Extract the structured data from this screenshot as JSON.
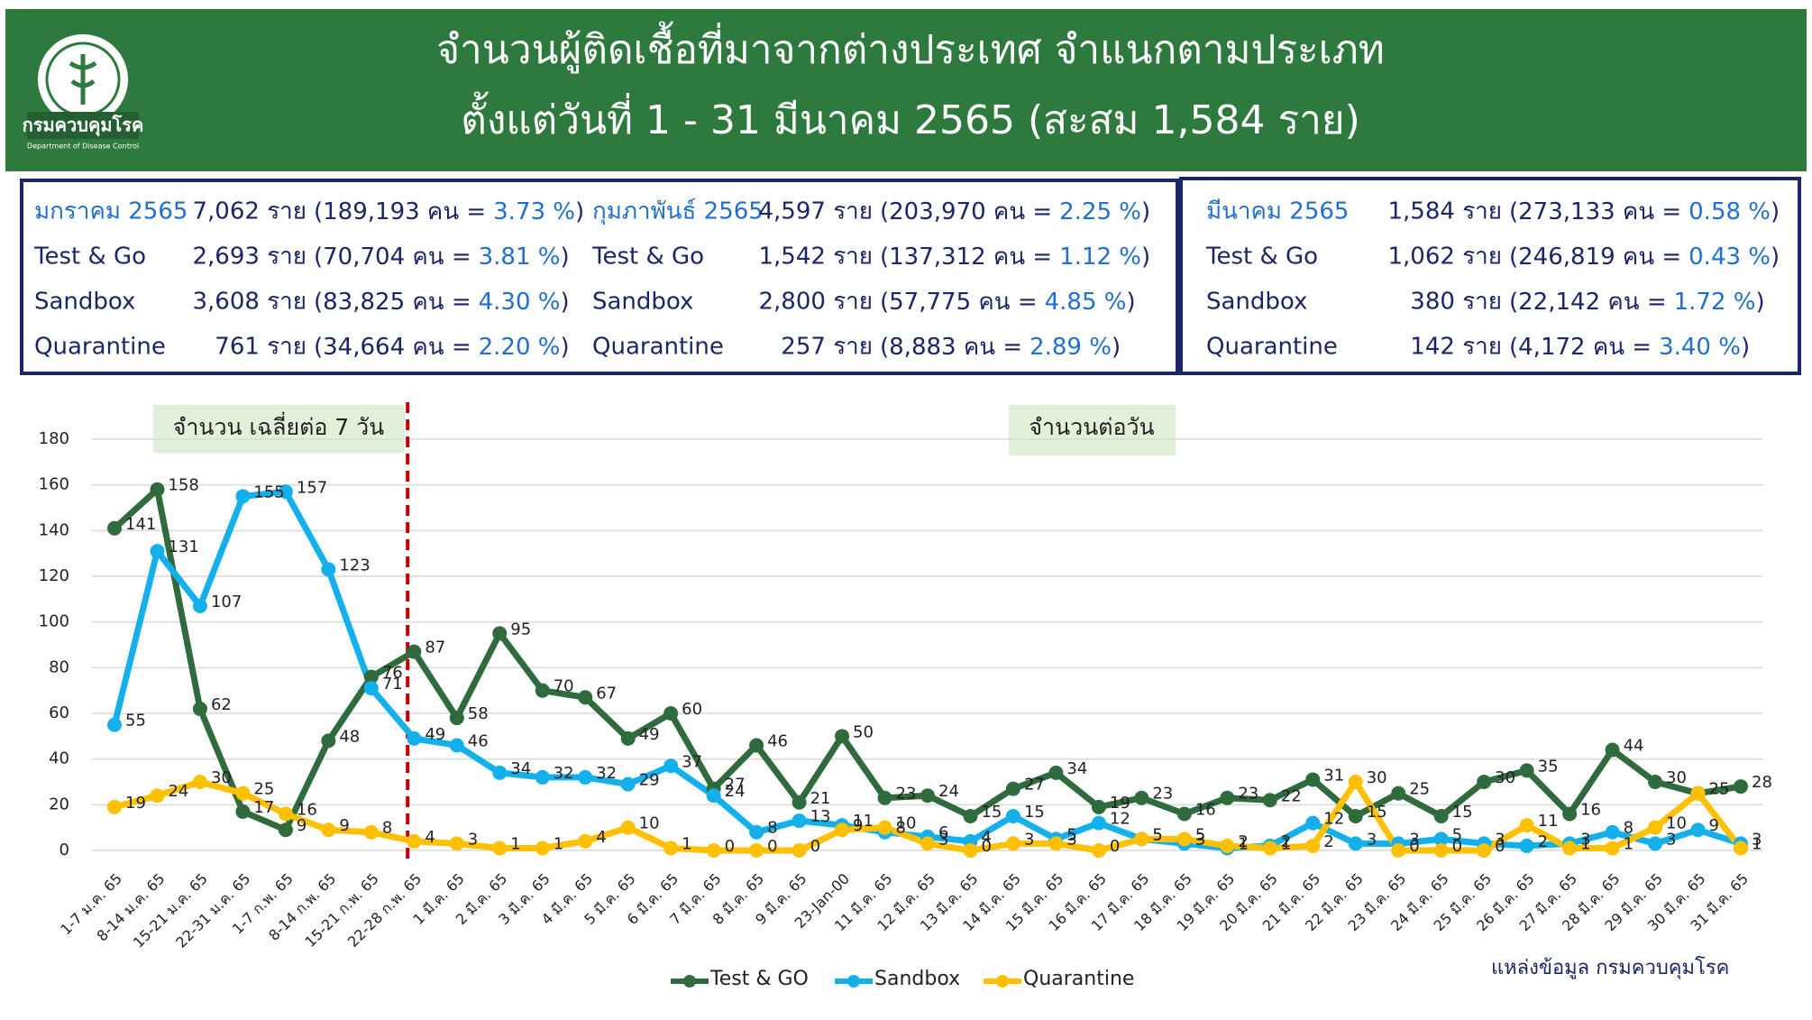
{
  "header": {
    "title_line1": "จำนวนผู้ติดเชื้อที่มาจากต่างประเทศ จำแนกตามประเภท",
    "title_line2": "ตั้งแต่วันที่ 1 - 31 มีนาคม 2565 (สะสม 1,584 ราย)",
    "logo_name": "กรมควบคุมโรค",
    "logo_subtitle": "Department of Disease Control"
  },
  "summary": [
    {
      "rows": [
        {
          "label": "มกราคม 2565",
          "count": "7,062 ราย",
          "people": "(189,193 คน =",
          "pct": "3.73 %",
          "close": ")"
        },
        {
          "label": "Test & Go",
          "count": "2,693 ราย",
          "people": "(70,704 คน =",
          "pct": "3.81 %",
          "close": ")"
        },
        {
          "label": "Sandbox",
          "count": "3,608 ราย",
          "people": "(83,825 คน =",
          "pct": "4.30 %",
          "close": ")"
        },
        {
          "label": "Quarantine",
          "count": "761 ราย",
          "people": "(34,664 คน =",
          "pct": "2.20 %",
          "close": ")"
        }
      ]
    },
    {
      "rows": [
        {
          "label": "กุมภาพันธ์ 2565",
          "count": "4,597 ราย",
          "people": "(203,970 คน =",
          "pct": "2.25 %",
          "close": ")"
        },
        {
          "label": "Test & Go",
          "count": "1,542 ราย",
          "people": "(137,312 คน =",
          "pct": "1.12 %",
          "close": ")"
        },
        {
          "label": "Sandbox",
          "count": "2,800 ราย",
          "people": "(57,775 คน =",
          "pct": "4.85 %",
          "close": ")"
        },
        {
          "label": "Quarantine",
          "count": "257 ราย",
          "people": "(8,883 คน =",
          "pct": "2.89 %",
          "close": ")"
        }
      ]
    },
    {
      "rows": [
        {
          "label": "มีนาคม 2565",
          "count": "1,584 ราย",
          "people": "(273,133 คน =",
          "pct": "0.58 %",
          "close": ")"
        },
        {
          "label": "Test & Go",
          "count": "1,062 ราย",
          "people": "(246,819 คน =",
          "pct": "0.43 %",
          "close": ")"
        },
        {
          "label": "Sandbox",
          "count": "380 ราย",
          "people": "(22,142 คน =",
          "pct": "1.72 %",
          "close": ")"
        },
        {
          "label": "Quarantine",
          "count": "142 ราย",
          "people": "(4,172 คน =",
          "pct": "3.40 %",
          "close": ")"
        }
      ]
    }
  ],
  "chart_data": {
    "type": "line",
    "categories": [
      "1-7 ม.ค. 65",
      "8-14 ม.ค. 65",
      "15-21 ม.ค. 65",
      "22-31 ม.ค. 65",
      "1-7 ก.พ. 65",
      "8-14 ก.พ. 65",
      "15-21 ก.พ. 65",
      "22-28 ก.พ. 65",
      "1 มี.ค. 65",
      "2 มี.ค. 65",
      "3 มี.ค. 65",
      "4 มี.ค. 65",
      "5 มี.ค. 65",
      "6 มี.ค. 65",
      "7 มี.ค. 65",
      "8 มี.ค. 65",
      "9 มี.ค. 65",
      "23-Jan-00",
      "11 มี.ค. 65",
      "12 มี.ค. 65",
      "13 มี.ค. 65",
      "14 มี.ค. 65",
      "15 มี.ค. 65",
      "16 มี.ค. 65",
      "17 มี.ค. 65",
      "18 มี.ค. 65",
      "19 มี.ค. 65",
      "20 มี.ค. 65",
      "21 มี.ค. 65",
      "22 มี.ค. 65",
      "23 มี.ค. 65",
      "24 มี.ค. 65",
      "25 มี.ค. 65",
      "26 มี.ค. 65",
      "27 มี.ค. 65",
      "28 มี.ค. 65",
      "29 มี.ค. 65",
      "30 มี.ค. 65",
      "31 มี.ค. 65"
    ],
    "series": [
      {
        "name": "Test & GO",
        "color": "#2f6b3c",
        "values": [
          141,
          158,
          62,
          17,
          9,
          48,
          76,
          87,
          58,
          95,
          70,
          67,
          49,
          60,
          27,
          46,
          21,
          50,
          23,
          24,
          15,
          27,
          34,
          19,
          23,
          16,
          23,
          22,
          31,
          15,
          25,
          15,
          30,
          35,
          16,
          44,
          30,
          25,
          28
        ]
      },
      {
        "name": "Sandbox",
        "color": "#14b0ec",
        "values": [
          55,
          131,
          107,
          155,
          157,
          123,
          71,
          49,
          46,
          34,
          32,
          32,
          29,
          37,
          24,
          8,
          13,
          11,
          8,
          6,
          4,
          15,
          5,
          12,
          5,
          3,
          1,
          2,
          12,
          3,
          3,
          5,
          3,
          2,
          3,
          8,
          3,
          9,
          3
        ]
      },
      {
        "name": "Quarantine",
        "color": "#ffc000",
        "values": [
          19,
          24,
          30,
          25,
          16,
          9,
          8,
          4,
          3,
          1,
          1,
          4,
          10,
          1,
          0,
          0,
          0,
          9,
          10,
          3,
          0,
          3,
          3,
          0,
          5,
          5,
          2,
          1,
          2,
          30,
          0,
          0,
          0,
          11,
          1,
          1,
          10,
          25,
          1
        ]
      }
    ],
    "ylim": [
      0,
      180
    ],
    "yticks": [
      0,
      20,
      40,
      60,
      80,
      100,
      120,
      140,
      160,
      180
    ],
    "grid": true,
    "legend": "bottom",
    "annotations": [
      "จำนวน เฉลี่ยต่อ 7 วัน",
      "จำนวนต่อวัน"
    ],
    "source": "แหล่งข้อมูล กรมควบคุมโรค"
  }
}
